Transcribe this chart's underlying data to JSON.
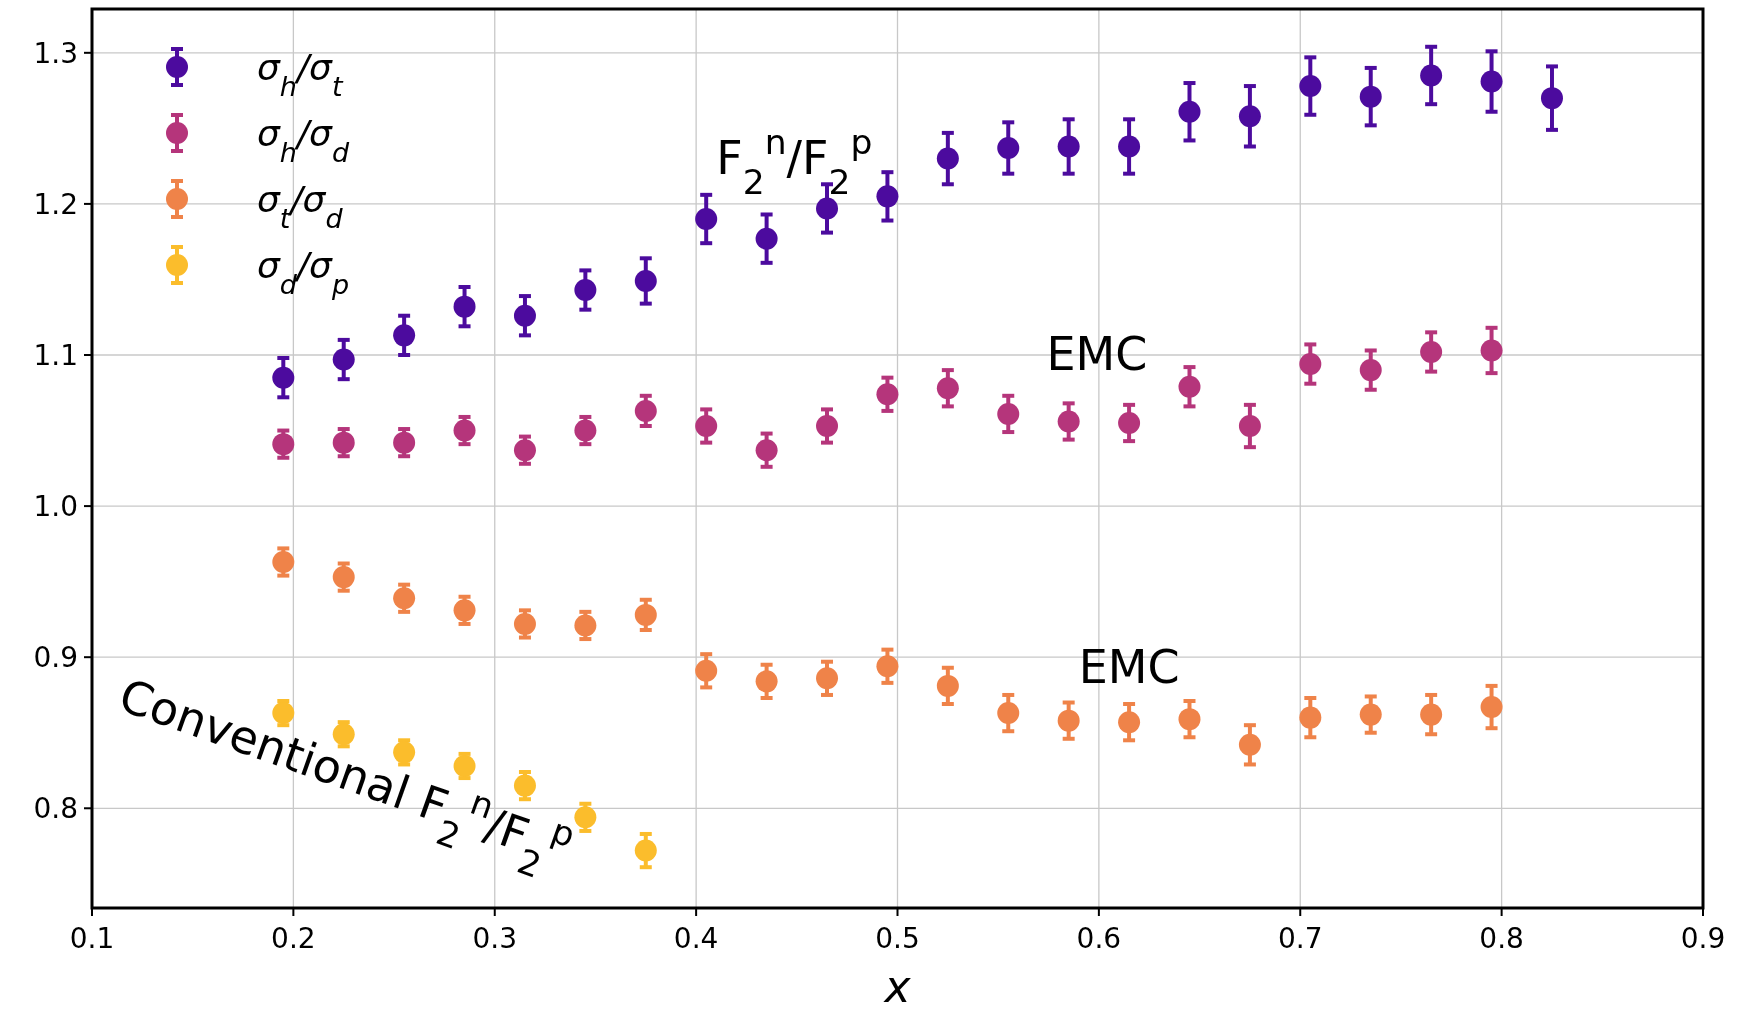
{
  "chart_data": {
    "type": "scatter",
    "xlabel": "x",
    "xlim": [
      0.1,
      0.9
    ],
    "ylim": [
      0.734,
      1.329
    ],
    "xticks": [
      0.1,
      0.2,
      0.3,
      0.4,
      0.5,
      0.6,
      0.7,
      0.8,
      0.9
    ],
    "yticks": [
      0.8,
      0.9,
      {
        "value": 1,
        "label": "1.0"
      },
      1.1,
      1.2,
      1.3
    ],
    "grid": true,
    "legend": "top left",
    "marker": "circle",
    "x": [
      0.195,
      0.225,
      0.255,
      0.285,
      0.315,
      0.345,
      0.375,
      0.405,
      0.435,
      0.465,
      0.495,
      0.525,
      0.555,
      0.585,
      0.615,
      0.645,
      0.675,
      0.705,
      0.735,
      0.765,
      0.795,
      0.825
    ],
    "series": [
      {
        "name": "σ$_{h}$/σ$_{t}$",
        "color": "#4c0b9e",
        "values": [
          1.085,
          1.097,
          1.113,
          1.132,
          1.126,
          1.143,
          1.149,
          1.19,
          1.177,
          1.197,
          1.205,
          1.23,
          1.237,
          1.238,
          1.238,
          1.261,
          1.258,
          1.278,
          1.271,
          1.285,
          1.281,
          1.27
        ],
        "errors": [
          0.013,
          0.013,
          0.013,
          0.013,
          0.013,
          0.013,
          0.015,
          0.016,
          0.016,
          0.016,
          0.016,
          0.017,
          0.017,
          0.018,
          0.018,
          0.019,
          0.02,
          0.019,
          0.019,
          0.019,
          0.02,
          0.021
        ]
      },
      {
        "name": "σ$_{h}$/σ$_{d}$",
        "color": "#b5357b",
        "values": [
          1.041,
          1.042,
          1.042,
          1.05,
          1.037,
          1.05,
          1.063,
          1.053,
          1.037,
          1.053,
          1.074,
          1.078,
          1.061,
          1.056,
          1.055,
          1.079,
          1.053,
          1.094,
          1.09,
          1.102,
          1.103,
          null
        ],
        "errors": [
          0.009,
          0.009,
          0.009,
          0.009,
          0.009,
          0.009,
          0.01,
          0.011,
          0.011,
          0.011,
          0.011,
          0.012,
          0.012,
          0.012,
          0.012,
          0.013,
          0.014,
          0.013,
          0.013,
          0.013,
          0.015,
          null
        ]
      },
      {
        "name": "σ$_{t}$/σ$_{d}$",
        "color": "#ef8349",
        "values": [
          0.963,
          0.953,
          0.939,
          0.931,
          0.922,
          0.921,
          0.928,
          0.891,
          0.884,
          0.886,
          0.894,
          0.881,
          0.863,
          0.858,
          0.857,
          0.859,
          0.842,
          0.86,
          0.862,
          0.862,
          0.867,
          null
        ],
        "errors": [
          0.009,
          0.009,
          0.009,
          0.009,
          0.009,
          0.009,
          0.01,
          0.011,
          0.011,
          0.011,
          0.011,
          0.012,
          0.012,
          0.012,
          0.012,
          0.012,
          0.013,
          0.013,
          0.012,
          0.013,
          0.014,
          null
        ]
      },
      {
        "name": "σ$_{d}$/σ$_{p}$",
        "color": "#fbbd2c",
        "values": [
          0.863,
          0.849,
          0.837,
          0.828,
          0.815,
          0.794,
          0.772,
          null,
          null,
          null,
          null,
          null,
          null,
          null,
          null,
          null,
          null,
          null,
          null,
          null,
          null,
          null
        ],
        "errors": [
          0.008,
          0.008,
          0.008,
          0.008,
          0.009,
          0.009,
          0.011,
          null,
          null,
          null,
          null,
          null,
          null,
          null,
          null,
          null,
          null,
          null,
          null,
          null,
          null,
          null
        ]
      }
    ],
    "annotations": [
      "F$_{2}$$^{n}$/F$_{2}$$^{p}$",
      "EMC",
      "EMC",
      "Conventional F$_{2}$$^{n}$/F$_{2}$$^{p}$"
    ]
  }
}
